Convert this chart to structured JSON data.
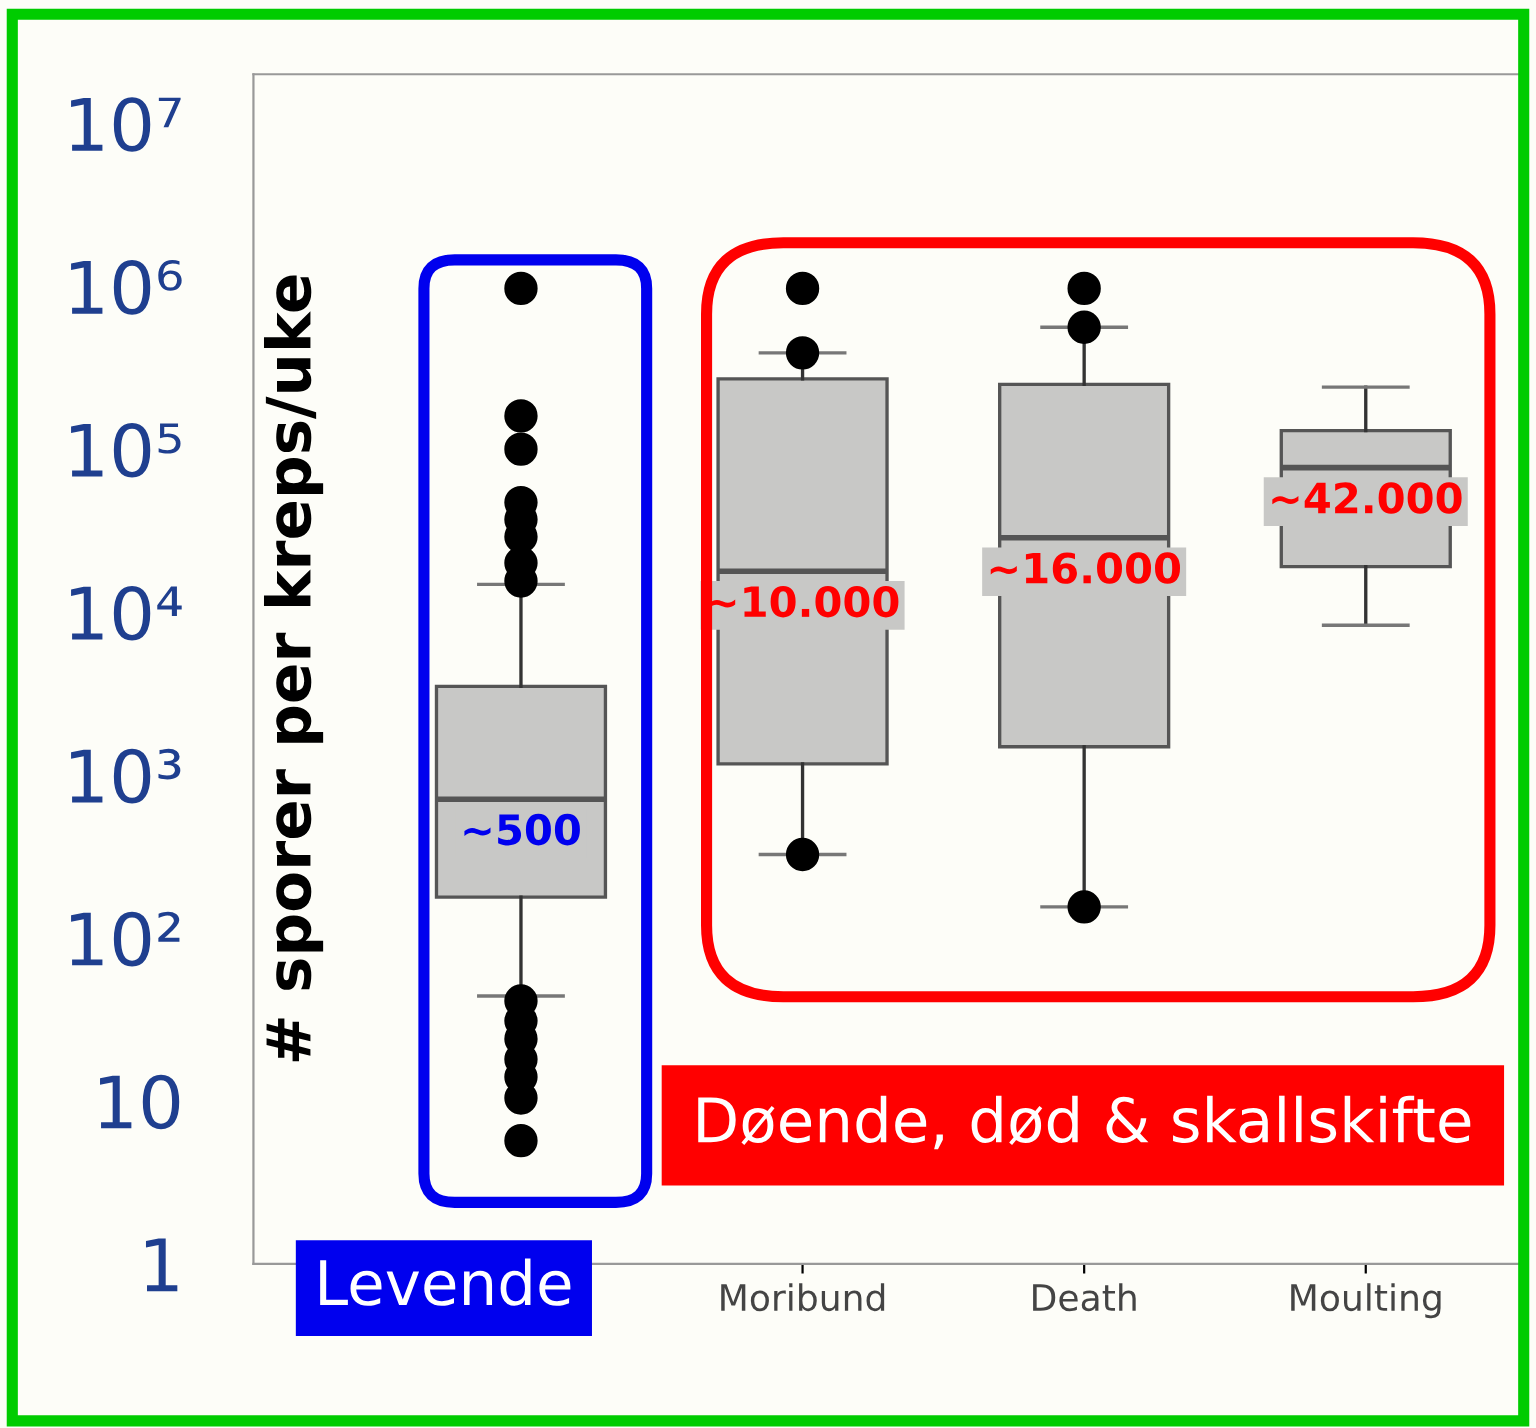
{
  "chart_data": {
    "type": "box",
    "ylabel": "# sporer per kreps/uke",
    "categories": [
      null,
      "Moribund",
      "Death",
      "Moulting"
    ],
    "series": [
      {
        "color": "#c8c8c6",
        "boxes": [
          {
            "low": 44,
            "q1": 178,
            "median": 710,
            "q3": 3500,
            "high": 14800,
            "outliers": [
              970000,
              160000,
              100000,
              47000,
              37000,
              29000,
              20000,
              15500,
              41,
              31,
              24,
              18,
              14,
              10.4,
              5.7
            ]
          },
          {
            "low": 325,
            "q1": 1170,
            "median": 17800,
            "q3": 270000,
            "high": 390000,
            "outliers": [
              970000,
              390000,
              325
            ]
          },
          {
            "low": 155,
            "q1": 1490,
            "median": 28600,
            "q3": 250000,
            "high": 560000,
            "outliers": [
              970000,
              560000,
              155
            ]
          },
          {
            "low": 8300,
            "q1": 19000,
            "median": 77000,
            "q3": 130000,
            "high": 240000
          }
        ]
      }
    ],
    "log": "y",
    "ylim": [
      1,
      20000000
    ],
    "yticks": [
      1,
      10,
      {
        "value": 100,
        "label": "10²"
      },
      {
        "value": 1000,
        "label": "10³"
      },
      {
        "value": 10000,
        "label": "10⁴"
      },
      {
        "value": 100000,
        "label": "10⁵"
      },
      {
        "value": 1000000,
        "label": "10⁶"
      },
      {
        "value": 10000000,
        "label": "10⁷"
      }
    ],
    "grid": false,
    "annotations": [
      "~500",
      "~10.000",
      "~16.000",
      "~42.000",
      "Levende",
      "Døende, død & skallskifte"
    ]
  }
}
